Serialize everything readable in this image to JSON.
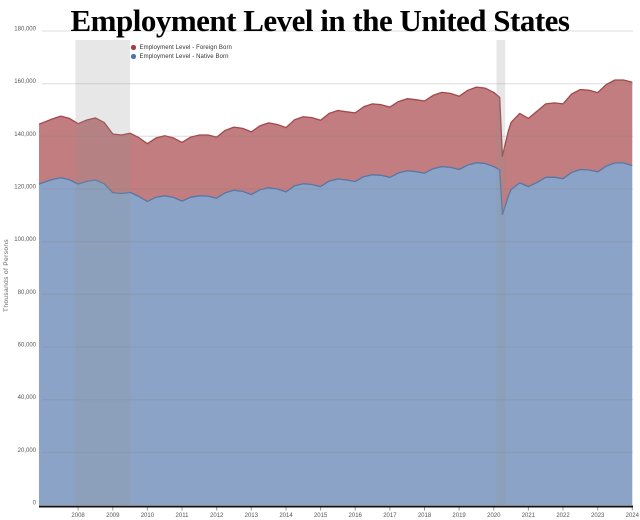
{
  "title": "Employment Level in the United States",
  "y_axis_label": "Thousands of Persons",
  "legend": [
    {
      "label": "Employment Level - Foreign Born",
      "color": "#a93b3f"
    },
    {
      "label": "Employment Level - Native Born",
      "color": "#4a74b0"
    }
  ],
  "colors": {
    "foreign_fill": "#c17d7f",
    "foreign_stroke": "#a4474b",
    "native_fill": "#8ba3c7",
    "native_stroke": "#5578a8",
    "recession_band": "rgba(145,145,145,0.22)",
    "gridline": "rgba(130,130,130,0.28)",
    "axis_line": "#111111",
    "tick_text": "#555555"
  },
  "chart_data": {
    "type": "area",
    "stacked": true,
    "title": "Employment Level in the United States",
    "xlabel": "",
    "ylabel": "Thousands of Persons",
    "x_unit": "decimal_year",
    "x_domain": [
      2006.87,
      2024.02
    ],
    "ylim": [
      0,
      180000
    ],
    "grid": true,
    "legend_position": "top-left",
    "x_ticks": [
      2008,
      2009,
      2010,
      2011,
      2012,
      2013,
      2014,
      2015,
      2016,
      2017,
      2018,
      2019,
      2020,
      2021,
      2022,
      2023,
      2024
    ],
    "y_ticks": [
      {
        "value": 0,
        "label": "0"
      },
      {
        "value": 20000,
        "label": "20,000"
      },
      {
        "value": 40000,
        "label": "40,000"
      },
      {
        "value": 60000,
        "label": "60,000"
      },
      {
        "value": 80000,
        "label": "80,000"
      },
      {
        "value": 100000,
        "label": "100,000"
      },
      {
        "value": 120000,
        "label": "120,000"
      },
      {
        "value": 140000,
        "label": "140,000"
      },
      {
        "value": 160000,
        "label": "160,000"
      },
      {
        "value": 180000,
        "label": "180,000"
      }
    ],
    "recession_bands": [
      {
        "start": 2007.92,
        "end": 2009.5
      },
      {
        "start": 2020.08,
        "end": 2020.33
      }
    ],
    "x": [
      2007.0,
      2007.25,
      2007.5,
      2007.75,
      2008.0,
      2008.25,
      2008.5,
      2008.75,
      2009.0,
      2009.25,
      2009.5,
      2009.75,
      2010.0,
      2010.25,
      2010.5,
      2010.75,
      2011.0,
      2011.25,
      2011.5,
      2011.75,
      2012.0,
      2012.25,
      2012.5,
      2012.75,
      2013.0,
      2013.25,
      2013.5,
      2013.75,
      2014.0,
      2014.25,
      2014.5,
      2014.75,
      2015.0,
      2015.25,
      2015.5,
      2015.75,
      2016.0,
      2016.25,
      2016.5,
      2016.75,
      2017.0,
      2017.25,
      2017.5,
      2017.75,
      2018.0,
      2018.25,
      2018.5,
      2018.75,
      2019.0,
      2019.25,
      2019.5,
      2019.75,
      2020.0,
      2020.17,
      2020.25,
      2020.33,
      2020.42,
      2020.5,
      2020.75,
      2021.0,
      2021.25,
      2021.5,
      2021.75,
      2022.0,
      2022.25,
      2022.5,
      2022.75,
      2023.0,
      2023.25,
      2023.5,
      2023.75,
      2024.0
    ],
    "series": [
      {
        "name": "Employment Level - Native Born",
        "stack_order": 0,
        "values": [
          121900,
          123600,
          124300,
          123500,
          121900,
          122900,
          123400,
          122000,
          118600,
          118300,
          118700,
          117200,
          115300,
          116900,
          117400,
          116800,
          115400,
          116900,
          117400,
          117300,
          116500,
          118600,
          119500,
          119100,
          117900,
          119700,
          120500,
          120000,
          118900,
          121200,
          122000,
          121700,
          120900,
          123000,
          123800,
          123400,
          122800,
          124700,
          125400,
          125200,
          124400,
          126100,
          126900,
          126600,
          126000,
          127700,
          128500,
          128200,
          127400,
          129100,
          130000,
          129700,
          128500,
          127300,
          110300,
          113600,
          117300,
          119800,
          122300,
          120900,
          122500,
          124400,
          124500,
          123900,
          126300,
          127400,
          127200,
          126500,
          128700,
          129900,
          129900,
          128900
        ]
      },
      {
        "name": "Employment Level - Foreign Born",
        "stack_order": 1,
        "values": [
          22700,
          23000,
          23400,
          23300,
          22900,
          23300,
          23600,
          23300,
          22300,
          22200,
          22500,
          22300,
          21900,
          22500,
          22800,
          22600,
          22300,
          22800,
          23100,
          23200,
          23200,
          23700,
          24000,
          23900,
          23800,
          24300,
          24600,
          24500,
          24400,
          25100,
          25400,
          25400,
          25200,
          25700,
          26000,
          25900,
          26100,
          26600,
          26900,
          26800,
          26700,
          27100,
          27400,
          27300,
          27400,
          27900,
          28200,
          28100,
          27800,
          28400,
          28700,
          28600,
          28200,
          27500,
          22100,
          23500,
          24700,
          25500,
          26400,
          25900,
          27100,
          27900,
          28200,
          28400,
          29800,
          30400,
          30300,
          30100,
          31000,
          31500,
          31500,
          31600
        ]
      }
    ]
  }
}
